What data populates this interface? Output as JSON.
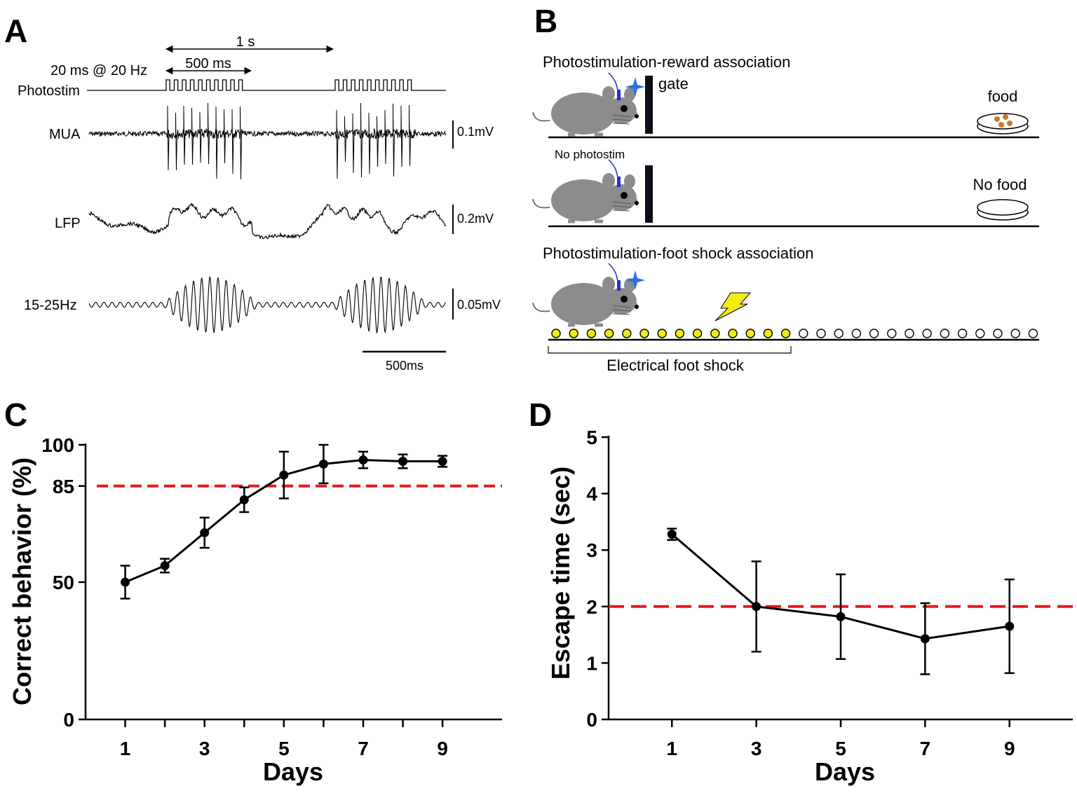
{
  "panels": {
    "a": "A",
    "b": "B",
    "c": "C",
    "d": "D"
  },
  "panel_a": {
    "one_s": "1 s",
    "ms500": "500 ms",
    "protocol": "20 ms @ 20 Hz",
    "rows": [
      "Photostim",
      "MUA",
      "LFP",
      "15-25Hz"
    ],
    "scales": [
      "0.1mV",
      "0.2mV",
      "0.05mV"
    ],
    "timebar": "500ms"
  },
  "panel_b": {
    "reward_title": "Photostimulation-reward association",
    "gate": "gate",
    "food": "food",
    "no_photostim": "No photostim",
    "no_food": "No food",
    "shock_title": "Photostimulation-foot shock association",
    "shock_label": "Electrical foot shock",
    "yellow_dots": 14,
    "white_dots": 14
  },
  "colors": {
    "red_dash": "#e8191e",
    "mouse": "#8c8c8c",
    "fiber": "#1f2fd6",
    "spark": "#2e6fe0",
    "yellow": "#f3ea18",
    "food": "#c8782a"
  },
  "chart_data": [
    {
      "type": "line",
      "panel": "C",
      "x": [
        1,
        2,
        3,
        4,
        5,
        6,
        7,
        8,
        9
      ],
      "y": [
        50,
        56,
        68,
        80,
        89,
        93,
        94.5,
        94,
        94
      ],
      "yerr": [
        6,
        2.5,
        5.5,
        4.5,
        8.5,
        7,
        3,
        2.5,
        2
      ],
      "threshold": 85,
      "xticks": [
        "1",
        "3",
        "5",
        "7",
        "9"
      ],
      "yticks": [
        "0",
        "50",
        "85",
        "100"
      ],
      "xlim": [
        0,
        10.5
      ],
      "ylim": [
        0,
        100
      ],
      "xlabel": "Days",
      "ylabel": "Correct behavior (%)"
    },
    {
      "type": "line",
      "panel": "D",
      "x": [
        1,
        3,
        5,
        7,
        9
      ],
      "y": [
        3.28,
        2.0,
        1.82,
        1.43,
        1.65
      ],
      "yerr": [
        0.1,
        0.8,
        0.75,
        0.63,
        0.83
      ],
      "threshold": 2,
      "xticks": [
        "1",
        "3",
        "5",
        "7",
        "9"
      ],
      "yticks": [
        "0",
        "1",
        "2",
        "3",
        "4",
        "5"
      ],
      "xlim": [
        -0.5,
        10.5
      ],
      "ylim": [
        0,
        5
      ],
      "xlabel": "Days",
      "ylabel": "Escape time (sec)"
    }
  ]
}
